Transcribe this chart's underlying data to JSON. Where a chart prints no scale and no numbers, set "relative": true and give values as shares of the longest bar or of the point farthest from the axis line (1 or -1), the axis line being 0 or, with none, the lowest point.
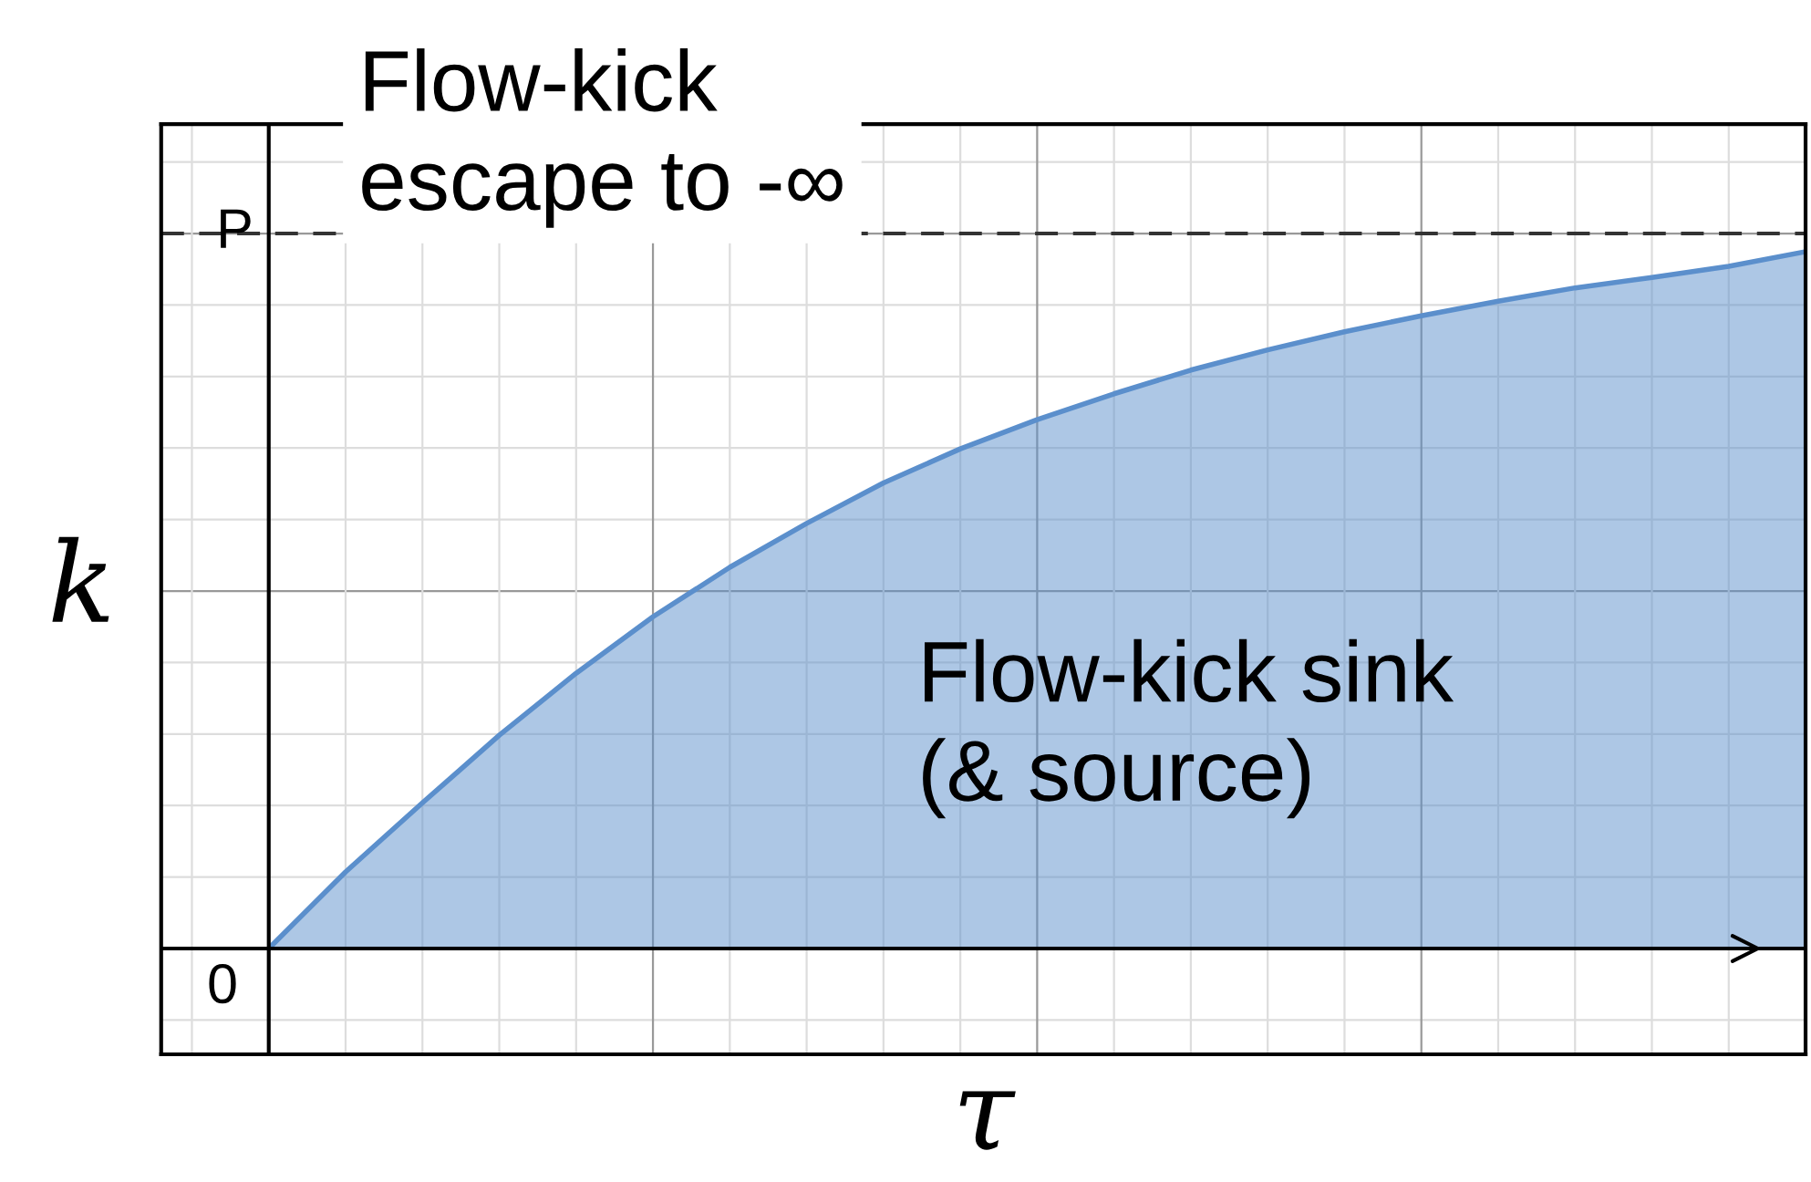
{
  "chart_data": {
    "type": "area",
    "relative": true,
    "xlabel": "τ",
    "ylabel": "k",
    "categories": [
      null,
      null,
      null,
      null,
      null,
      null,
      null,
      null,
      null,
      null,
      null,
      null,
      null,
      null,
      null,
      null,
      null,
      null,
      null,
      null,
      null
    ],
    "series": [
      {
        "color": "#5b8fcc",
        "values": [
          0,
          0.11,
          0.209,
          0.306,
          0.395,
          0.476,
          0.547,
          0.61,
          0.668,
          0.717,
          0.759,
          0.796,
          0.83,
          0.859,
          0.885,
          0.908,
          0.929,
          0.948,
          0.963,
          0.979,
          1
        ]
      }
    ],
    "ref_lines": [
      {
        "axis": "y",
        "value": 1.026,
        "label": "P",
        "color": "#333333",
        "line_style": "dashed"
      }
    ],
    "annotations": [
      "0",
      "Flow-kick\nescape to -∞",
      "Flow-kick sink\n(& source)"
    ],
    "grid": true,
    "legend": false
  }
}
